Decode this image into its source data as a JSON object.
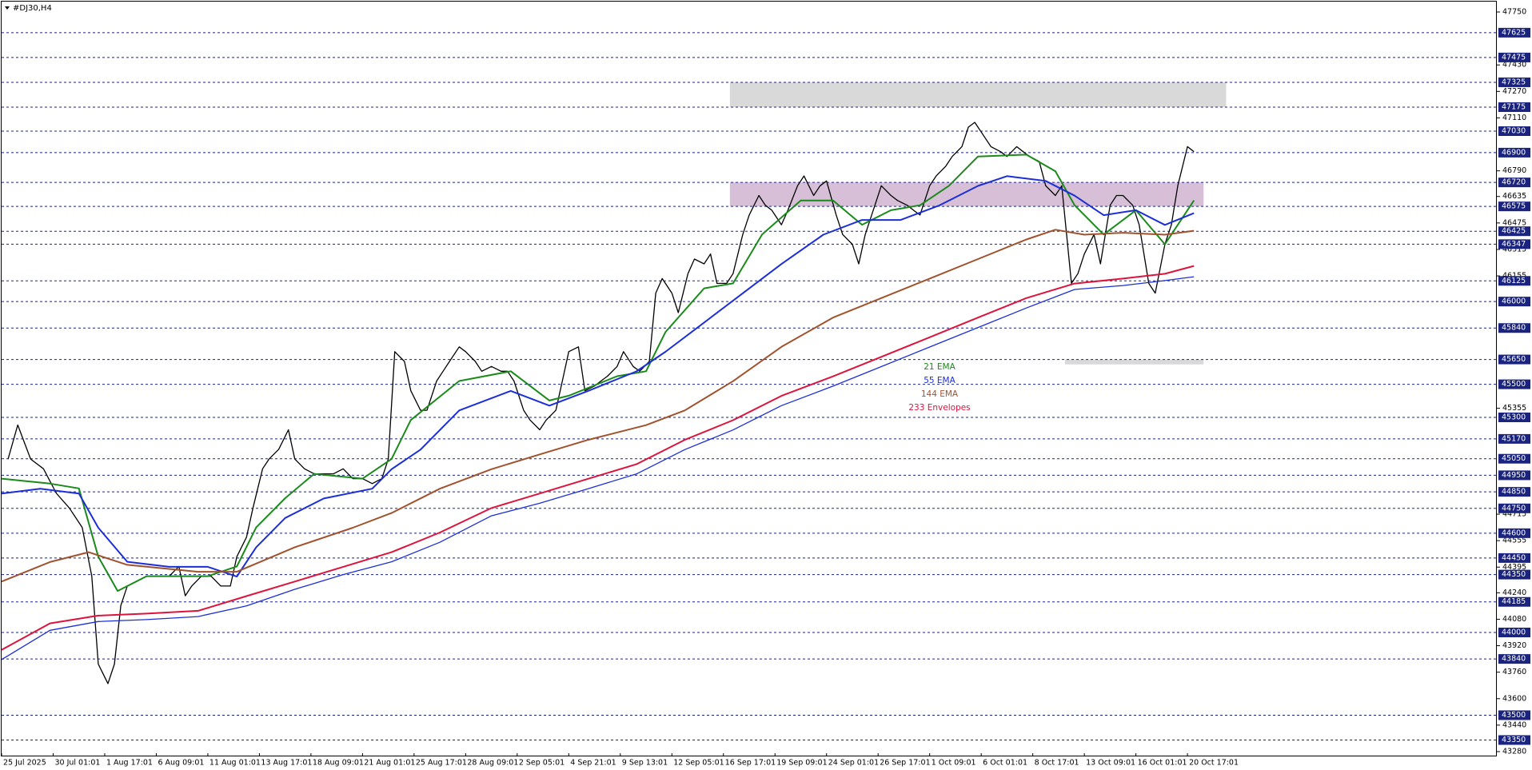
{
  "chart_data": {
    "type": "line",
    "title": "#DJ30,H4",
    "xlim": [
      0,
      464
    ],
    "ylim": [
      43280,
      47750
    ],
    "xticks": [
      {
        "value": 0,
        "label": "25 Jul 2025"
      },
      {
        "value": 16,
        "label": "30 Jul 01:01"
      },
      {
        "value": 32,
        "label": "1 Aug 17:01"
      },
      {
        "value": 48,
        "label": "6 Aug 09:01"
      },
      {
        "value": 64,
        "label": "11 Aug 01:01"
      },
      {
        "value": 80,
        "label": "13 Aug 17:01"
      },
      {
        "value": 96,
        "label": "18 Aug 09:01"
      },
      {
        "value": 112,
        "label": "21 Aug 01:01"
      },
      {
        "value": 128,
        "label": "25 Aug 17:01"
      },
      {
        "value": 144,
        "label": "28 Aug 09:01"
      },
      {
        "value": 160,
        "label": "2 Sep 05:01"
      },
      {
        "value": 176,
        "label": "4 Sep 21:01"
      },
      {
        "value": 192,
        "label": "9 Sep 13:01"
      },
      {
        "value": 208,
        "label": "12 Sep 05:01"
      },
      {
        "value": 224,
        "label": "16 Sep 17:01"
      },
      {
        "value": 240,
        "label": "19 Sep 09:01"
      },
      {
        "value": 256,
        "label": "24 Sep 01:01"
      },
      {
        "value": 272,
        "label": "26 Sep 17:01"
      },
      {
        "value": 288,
        "label": "1 Oct 09:01"
      },
      {
        "value": 304,
        "label": "6 Oct 01:01"
      },
      {
        "value": 320,
        "label": "8 Oct 17:01"
      },
      {
        "value": 336,
        "label": "13 Oct 09:01"
      },
      {
        "value": 352,
        "label": "16 Oct 01:01"
      },
      {
        "value": 368,
        "label": "20 Oct 17:01"
      }
    ],
    "yticks": [
      47750,
      47430,
      47270,
      47110,
      46790,
      46635,
      46475,
      46315,
      46155,
      45355,
      44715,
      44555,
      44395,
      44240,
      44080,
      43920,
      43760,
      43600,
      43440,
      43280
    ],
    "levels": [
      47625,
      47475,
      47325,
      47175,
      47030,
      46900,
      46720,
      46575,
      46425,
      46347,
      46125,
      46000,
      45840,
      45650,
      45500,
      45300,
      45170,
      45050,
      44950,
      44850,
      44750,
      44600,
      44450,
      44350,
      44185,
      44000,
      43840,
      43500,
      43350
    ],
    "level_color": "#1a237e",
    "zones": [
      {
        "x": [
          226,
          380
        ],
        "y": [
          47175,
          47325
        ],
        "color": "#d9d9d9"
      },
      {
        "x": [
          226,
          373
        ],
        "y": [
          46575,
          46720
        ],
        "color": "#d8bfd8"
      },
      {
        "x": [
          330,
          373
        ],
        "y": [
          45620,
          45650
        ],
        "color": "#d9d9d9"
      }
    ],
    "series": [
      {
        "color": "#000000",
        "x": [
          2,
          5,
          9,
          13,
          17,
          21,
          25,
          28,
          30,
          33,
          35,
          37,
          39,
          42,
          45,
          48,
          52,
          55,
          57,
          59,
          62,
          65,
          68,
          71,
          73,
          76,
          78,
          81,
          83,
          86,
          89,
          91,
          94,
          97,
          100,
          103,
          106,
          109,
          112,
          115,
          118,
          120,
          122,
          125,
          127,
          130,
          132,
          135,
          137,
          139,
          142,
          144,
          147,
          149,
          152,
          155,
          157,
          159,
          162,
          164,
          167,
          169,
          172,
          174,
          176,
          179,
          181,
          184,
          186,
          188,
          191,
          193,
          196,
          198,
          201,
          203,
          205,
          208,
          210,
          213,
          215,
          218,
          220,
          222,
          225,
          227,
          230,
          232,
          235,
          237,
          239,
          242,
          244,
          247,
          249,
          252,
          254,
          256,
          259,
          261,
          264,
          266,
          268,
          271,
          273,
          276,
          278,
          281,
          283,
          285,
          288,
          290,
          293,
          295,
          298,
          300,
          302,
          305,
          307,
          310,
          312,
          315,
          317,
          319,
          322,
          324,
          327,
          329,
          332,
          334,
          336,
          339,
          341,
          344,
          346,
          348,
          351,
          353,
          356,
          358,
          361,
          363,
          365,
          368,
          370
        ],
        "values": [
          45048,
          45254,
          45048,
          44989,
          44841,
          44753,
          44635,
          44340,
          43809,
          43691,
          43809,
          44163,
          44281,
          44310,
          44340,
          44340,
          44340,
          44399,
          44222,
          44281,
          44340,
          44340,
          44281,
          44281,
          44458,
          44576,
          44753,
          44989,
          45048,
          45107,
          45225,
          45048,
          44989,
          44959,
          44959,
          44959,
          44989,
          44930,
          44930,
          44900,
          44930,
          45048,
          45697,
          45638,
          45461,
          45343,
          45343,
          45520,
          45579,
          45638,
          45726,
          45697,
          45638,
          45579,
          45608,
          45579,
          45579,
          45520,
          45343,
          45284,
          45225,
          45284,
          45343,
          45520,
          45697,
          45726,
          45461,
          45490,
          45520,
          45549,
          45608,
          45697,
          45608,
          45579,
          45638,
          46051,
          46139,
          46051,
          45933,
          46169,
          46257,
          46228,
          46287,
          46110,
          46110,
          46169,
          46405,
          46523,
          46641,
          46582,
          46552,
          46464,
          46552,
          46700,
          46759,
          46641,
          46700,
          46729,
          46523,
          46405,
          46346,
          46228,
          46405,
          46582,
          46700,
          46641,
          46611,
          46582,
          46552,
          46523,
          46700,
          46759,
          46818,
          46877,
          46936,
          47054,
          47083,
          46995,
          46936,
          46906,
          46877,
          46936,
          46906,
          46877,
          46847,
          46700,
          46641,
          46700,
          46110,
          46169,
          46287,
          46405,
          46228,
          46582,
          46641,
          46641,
          46582,
          46464,
          46110,
          46051,
          46346,
          46464,
          46700,
          46936,
          46906
        ]
      },
      {
        "name": "21 EMA",
        "color": "#1a8a1a",
        "x": [
          0,
          15,
          24,
          30,
          36,
          45,
          55,
          64,
          73,
          79,
          88,
          97,
          112,
          121,
          127,
          142,
          158,
          170,
          176,
          191,
          200,
          206,
          218,
          227,
          236,
          248,
          258,
          267,
          276,
          285,
          294,
          303,
          318,
          327,
          333,
          342,
          352,
          361,
          370
        ],
        "values": [
          44930,
          44900,
          44871,
          44458,
          44251,
          44340,
          44340,
          44340,
          44399,
          44635,
          44812,
          44959,
          44930,
          45048,
          45284,
          45520,
          45579,
          45402,
          45431,
          45549,
          45579,
          45815,
          46080,
          46110,
          46405,
          46611,
          46611,
          46464,
          46552,
          46582,
          46700,
          46877,
          46888,
          46788,
          46582,
          46405,
          46552,
          46346,
          46611
        ]
      },
      {
        "name": "55 EMA",
        "color": "#1c2fd6",
        "x": [
          0,
          12,
          24,
          30,
          39,
          52,
          64,
          73,
          79,
          88,
          100,
          115,
          121,
          130,
          142,
          158,
          170,
          182,
          197,
          206,
          218,
          230,
          242,
          255,
          267,
          279,
          291,
          303,
          312,
          324,
          333,
          342,
          352,
          361,
          370
        ],
        "values": [
          44840,
          44869,
          44840,
          44633,
          44427,
          44397,
          44397,
          44338,
          44515,
          44692,
          44810,
          44869,
          44987,
          45105,
          45342,
          45460,
          45371,
          45460,
          45578,
          45696,
          45873,
          46050,
          46227,
          46404,
          46493,
          46493,
          46581,
          46699,
          46758,
          46729,
          46640,
          46522,
          46552,
          46463,
          46534
        ]
      },
      {
        "name": "144 EMA",
        "color": "#a0522d",
        "x": [
          0,
          15,
          27,
          39,
          61,
          73,
          91,
          109,
          121,
          136,
          152,
          167,
          182,
          200,
          212,
          227,
          242,
          258,
          273,
          288,
          303,
          318,
          327,
          336,
          348,
          361,
          370
        ],
        "values": [
          44308,
          44426,
          44485,
          44409,
          44367,
          44367,
          44515,
          44633,
          44722,
          44869,
          44987,
          45076,
          45164,
          45253,
          45342,
          45519,
          45726,
          45903,
          46021,
          46139,
          46257,
          46375,
          46434,
          46404,
          46416,
          46404,
          46428
        ]
      },
      {
        "name": "233 Envelopes",
        "color": "#dc143c",
        "x": [
          0,
          15,
          30,
          45,
          61,
          76,
          91,
          106,
          121,
          136,
          152,
          167,
          182,
          197,
          212,
          227,
          242,
          258,
          273,
          288,
          303,
          318,
          333,
          348,
          361,
          370
        ],
        "values": [
          43895,
          44055,
          44102,
          44114,
          44131,
          44220,
          44308,
          44397,
          44485,
          44604,
          44752,
          44840,
          44929,
          45017,
          45164,
          45283,
          45430,
          45548,
          45666,
          45784,
          45903,
          46021,
          46109,
          46139,
          46168,
          46215
        ]
      },
      {
        "color": "#1c2fd6",
        "x": [
          0,
          15,
          30,
          45,
          61,
          76,
          91,
          106,
          121,
          136,
          152,
          167,
          182,
          197,
          212,
          227,
          242,
          258,
          273,
          288,
          303,
          318,
          333,
          348,
          361,
          370
        ],
        "values": [
          43836,
          44013,
          44066,
          44078,
          44096,
          44161,
          44261,
          44350,
          44427,
          44545,
          44705,
          44781,
          44869,
          44958,
          45105,
          45224,
          45371,
          45489,
          45607,
          45725,
          45843,
          45961,
          46073,
          46097,
          46127,
          46150
        ]
      }
    ]
  }
}
